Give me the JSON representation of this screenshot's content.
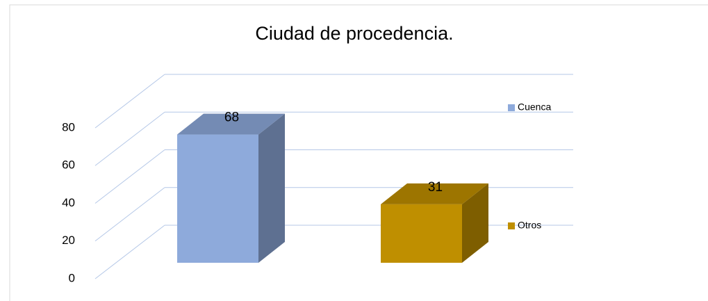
{
  "chart_data": {
    "type": "bar3d",
    "title": "Ciudad de procedencia.",
    "series": [
      {
        "name": "Cuenca",
        "color": "#8eaadb",
        "values": [
          68
        ]
      },
      {
        "name": "Otros",
        "color": "#bf8f00",
        "values": [
          31
        ]
      }
    ],
    "ylim": [
      0,
      80
    ],
    "yticks": [
      0,
      20,
      40,
      60,
      80
    ],
    "grid": true,
    "legend": "right"
  }
}
